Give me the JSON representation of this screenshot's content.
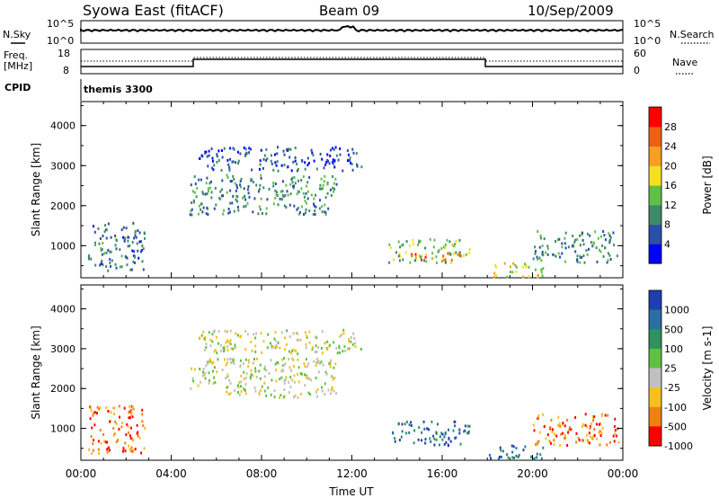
{
  "header": {
    "site": "Syowa East (fitACF)",
    "beam": "Beam 09",
    "date": "10/Sep/2009"
  },
  "noise_panel": {
    "left_label": "N.Sky",
    "right_label": "N.Search",
    "tick_top": "10^5",
    "tick_bottom": "10^0"
  },
  "freq_panel": {
    "left_label_1": "Freq.",
    "left_label_2": "[MHz]",
    "right_label": "Nave",
    "left_ticks": [
      "18",
      "8"
    ],
    "right_ticks": [
      "60",
      "0"
    ]
  },
  "cpid": {
    "label": "CPID",
    "value": "themis 3300"
  },
  "chart_data": [
    {
      "type": "heatmap",
      "panel": "power",
      "ylabel": "Slant Range [km]",
      "y_ticks": [
        "1000",
        "2000",
        "3000",
        "4000"
      ],
      "ylim": [
        200,
        4600
      ],
      "xlim": [
        "00:00",
        "24:00"
      ],
      "colorbar": {
        "label": "Power [dB]",
        "ticks": [
          "4",
          "8",
          "12",
          "16",
          "20",
          "24",
          "28"
        ],
        "colors": [
          "#0000ff",
          "#2a4fa8",
          "#3f8a6a",
          "#5fc045",
          "#f5e020",
          "#f5a020",
          "#f06010",
          "#ff0000"
        ]
      },
      "echo_regions": [
        {
          "t": [
            0.3,
            2.8
          ],
          "range": [
            400,
            1600
          ],
          "power_db": 8
        },
        {
          "t": [
            4.8,
            11.3
          ],
          "range": [
            1800,
            2800
          ],
          "power_db": 10
        },
        {
          "t": [
            5.2,
            12.4
          ],
          "range": [
            2900,
            3500
          ],
          "power_db": 6
        },
        {
          "t": [
            13.6,
            17.2
          ],
          "range": [
            600,
            1200
          ],
          "power_db": 14
        },
        {
          "t": [
            14.5,
            16.8
          ],
          "range": [
            650,
            850
          ],
          "power_db": 26
        },
        {
          "t": [
            18.0,
            20.5
          ],
          "range": [
            250,
            600
          ],
          "power_db": 18
        },
        {
          "t": [
            20.0,
            23.8
          ],
          "range": [
            600,
            1400
          ],
          "power_db": 10
        }
      ]
    },
    {
      "type": "heatmap",
      "panel": "velocity",
      "ylabel": "Slant Range [km]",
      "y_ticks": [
        "1000",
        "2000",
        "3000",
        "4000"
      ],
      "ylim": [
        200,
        4600
      ],
      "xlim": [
        "00:00",
        "24:00"
      ],
      "x_ticks": [
        "00:00",
        "04:00",
        "08:00",
        "12:00",
        "16:00",
        "20:00",
        "00:00"
      ],
      "xlabel": "Time UT",
      "colorbar": {
        "label": "Velocity [m s-1]",
        "ticks": [
          "1000",
          "500",
          "100",
          "25",
          "-25",
          "-100",
          "-500",
          "-1000"
        ],
        "colors": [
          "#1f3fb0",
          "#2a70a0",
          "#2f9060",
          "#60c040",
          "#c0c0c0",
          "#f5c020",
          "#f08010",
          "#ff0000"
        ]
      },
      "echo_regions": [
        {
          "t": [
            0.3,
            2.8
          ],
          "range": [
            400,
            1600
          ],
          "velocity": -300
        },
        {
          "t": [
            4.8,
            11.3
          ],
          "range": [
            1800,
            2800
          ],
          "velocity": 20
        },
        {
          "t": [
            5.2,
            12.4
          ],
          "range": [
            2900,
            3500
          ],
          "velocity": 0
        },
        {
          "t": [
            13.6,
            17.2
          ],
          "range": [
            600,
            1200
          ],
          "velocity": 400
        },
        {
          "t": [
            18.0,
            20.5
          ],
          "range": [
            250,
            600
          ],
          "velocity": 300
        },
        {
          "t": [
            20.0,
            23.8
          ],
          "range": [
            600,
            1400
          ],
          "velocity": -300
        }
      ]
    }
  ]
}
